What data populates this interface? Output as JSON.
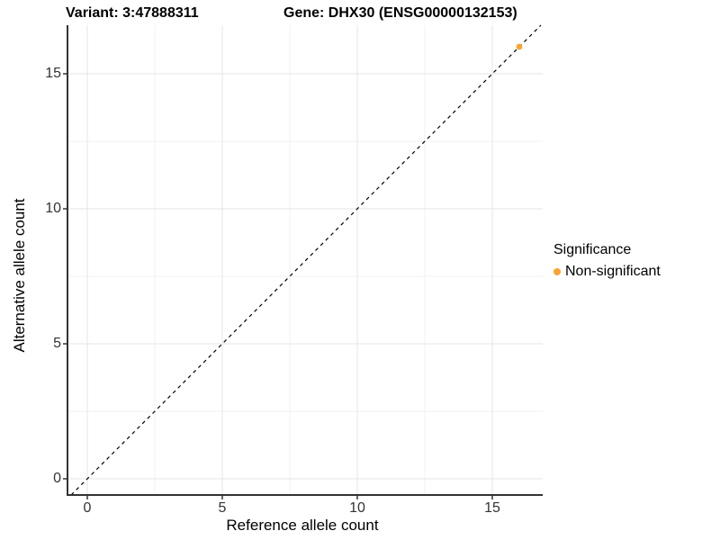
{
  "titles": {
    "variant": "Variant: 3:47888311",
    "gene": "Gene: DHX30 (ENSG00000132153)"
  },
  "chart_data": {
    "type": "scatter",
    "title": "Variant: 3:47888311   Gene: DHX30 (ENSG00000132153)",
    "xlabel": "Reference allele count",
    "ylabel": "Alternative allele count",
    "xlim": [
      -0.73,
      16.87
    ],
    "ylim": [
      -0.6,
      16.8
    ],
    "xticks": [
      0,
      5,
      10,
      15
    ],
    "yticks": [
      0,
      5,
      10,
      15
    ],
    "xticks_minor": [
      2.5,
      7.5,
      12.5
    ],
    "yticks_minor": [
      2.5,
      7.5,
      12.5
    ],
    "grid": true,
    "points": [
      {
        "x": 16,
        "y": 16,
        "series": "Non-significant"
      }
    ],
    "reference_line": {
      "type": "identity",
      "slope": 1,
      "intercept": 0,
      "style": "dashed",
      "color": "#000000"
    },
    "legend": {
      "title": "Significance",
      "position": "right",
      "items": [
        {
          "label": "Non-significant",
          "color": "#F9A432"
        }
      ]
    },
    "colors": {
      "point": "#F9A432",
      "axis": "#333333",
      "grid_major": "#E4E4E4",
      "grid_minor": "#F1F1F1",
      "background": "#FFFFFF"
    }
  }
}
